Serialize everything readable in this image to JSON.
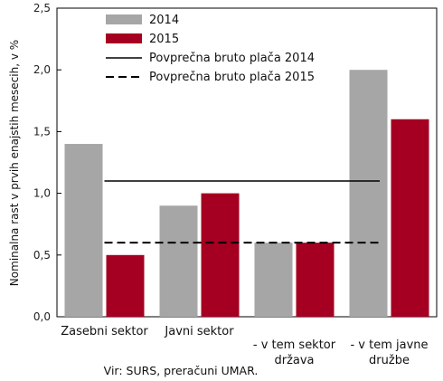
{
  "chart_data": {
    "type": "bar",
    "categories": [
      [
        "Zasebni sektor"
      ],
      [
        "Javni sektor"
      ],
      [
        "- v tem sektor",
        "država"
      ],
      [
        "- v tem javne",
        "družbe"
      ]
    ],
    "series": [
      {
        "name": "2014",
        "values": [
          1.4,
          0.9,
          0.6,
          2.0
        ],
        "color": "#a6a6a6"
      },
      {
        "name": "2015",
        "values": [
          0.5,
          1.0,
          0.6,
          1.6
        ],
        "color": "#a50021"
      }
    ],
    "reference_lines": [
      {
        "name": "Povprečna bruto plača 2014",
        "value": 1.1,
        "style": "solid",
        "color": "#000000"
      },
      {
        "name": "Povprečna bruto plača 2015",
        "value": 0.6,
        "style": "dashed",
        "color": "#000000"
      }
    ],
    "ylabel": "Nominalna rast v prvih enajstih mesecih, v %",
    "ylim": [
      0,
      2.5
    ],
    "yticks": [
      "0,0",
      "0,5",
      "1,0",
      "1,5",
      "2,0",
      "2,5"
    ],
    "grid": false,
    "legend_position": "top-center"
  },
  "source": "Vir: SURS, preračuni UMAR."
}
